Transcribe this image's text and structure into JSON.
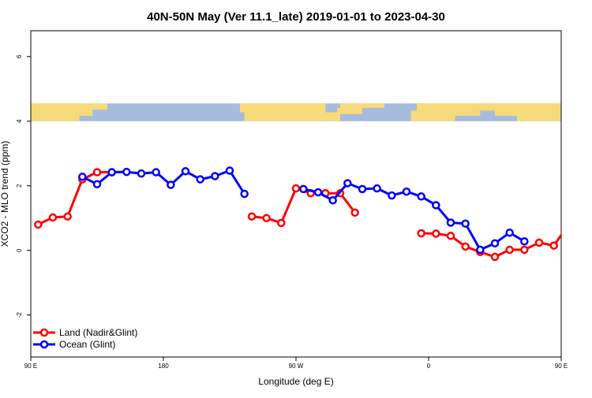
{
  "chart_data": {
    "type": "line",
    "title": "40N-50N May (Ver 11.1_late)   2019-01-01 to 2023-04-30",
    "xlabel": "Longitude (deg E)",
    "ylabel": "XCO2 - MLO trend (ppm)",
    "xlim": [
      90,
      450
    ],
    "ylim": [
      -3.3,
      6.8
    ],
    "x_ticks": [
      {
        "value": 90,
        "label": "90 E"
      },
      {
        "value": 180,
        "label": "180"
      },
      {
        "value": 270,
        "label": "90 W"
      },
      {
        "value": 360,
        "label": "0"
      },
      {
        "value": 450,
        "label": "90 E"
      },
      {
        "value": 540,
        "label": "180"
      }
    ],
    "y_ticks": [
      {
        "value": -2,
        "label": "-2"
      },
      {
        "value": 0,
        "label": "0"
      },
      {
        "value": 2,
        "label": "2"
      },
      {
        "value": 4,
        "label": "4"
      },
      {
        "value": 6,
        "label": "6"
      }
    ],
    "x_scale_note": "x axis spans 90 E to 180 continuing around the globe (wrapped longitude)",
    "grid": false,
    "legend_position": "bottom-left",
    "map_strip": {
      "y_range": [
        4.0,
        4.55
      ],
      "land_color": "#F7DA7A",
      "ocean_color": "#A6BCDC"
    },
    "series": [
      {
        "name": "Land (Nadir&Glint)",
        "color": "#FF0000",
        "segments": [
          [
            [
              95,
              0.8
            ],
            [
              105,
              1.02
            ],
            [
              115,
              1.05
            ],
            [
              125,
              2.2
            ],
            [
              135,
              2.42
            ],
            [
              145,
              2.42
            ]
          ],
          [
            [
              240,
              1.05
            ],
            [
              250,
              1.0
            ],
            [
              260,
              0.85
            ],
            [
              270,
              1.92
            ],
            [
              280,
              1.77
            ],
            [
              290,
              1.77
            ],
            [
              300,
              1.77
            ],
            [
              310,
              1.17
            ]
          ],
          [
            [
              355,
              0.53
            ],
            [
              365,
              0.52
            ],
            [
              375,
              0.45
            ],
            [
              385,
              0.12
            ],
            [
              395,
              -0.05
            ],
            [
              405,
              -0.2
            ],
            [
              415,
              0.02
            ],
            [
              425,
              0.02
            ],
            [
              435,
              0.24
            ],
            [
              445,
              0.15
            ],
            [
              455,
              0.8
            ],
            [
              465,
              1.03
            ],
            [
              475,
              1.05
            ],
            [
              485,
              2.2
            ],
            [
              495,
              2.42
            ],
            [
              505,
              2.42
            ]
          ]
        ]
      },
      {
        "name": "Ocean (Glint)",
        "color": "#0000FF",
        "segments": [
          [
            [
              125,
              2.28
            ],
            [
              135,
              2.05
            ],
            [
              145,
              2.42
            ],
            [
              155,
              2.43
            ],
            [
              165,
              2.38
            ],
            [
              175,
              2.42
            ],
            [
              185,
              2.03
            ],
            [
              195,
              2.45
            ],
            [
              205,
              2.2
            ],
            [
              215,
              2.3
            ],
            [
              225,
              2.47
            ],
            [
              235,
              1.75
            ]
          ],
          [
            [
              275,
              1.9
            ],
            [
              285,
              1.8
            ],
            [
              295,
              1.55
            ],
            [
              305,
              2.08
            ],
            [
              315,
              1.9
            ],
            [
              325,
              1.92
            ],
            [
              335,
              1.7
            ],
            [
              345,
              1.82
            ],
            [
              355,
              1.67
            ],
            [
              365,
              1.4
            ],
            [
              375,
              0.86
            ],
            [
              385,
              0.83
            ],
            [
              395,
              0.02
            ],
            [
              405,
              0.22
            ],
            [
              415,
              0.55
            ],
            [
              425,
              0.28
            ]
          ]
        ]
      }
    ]
  }
}
